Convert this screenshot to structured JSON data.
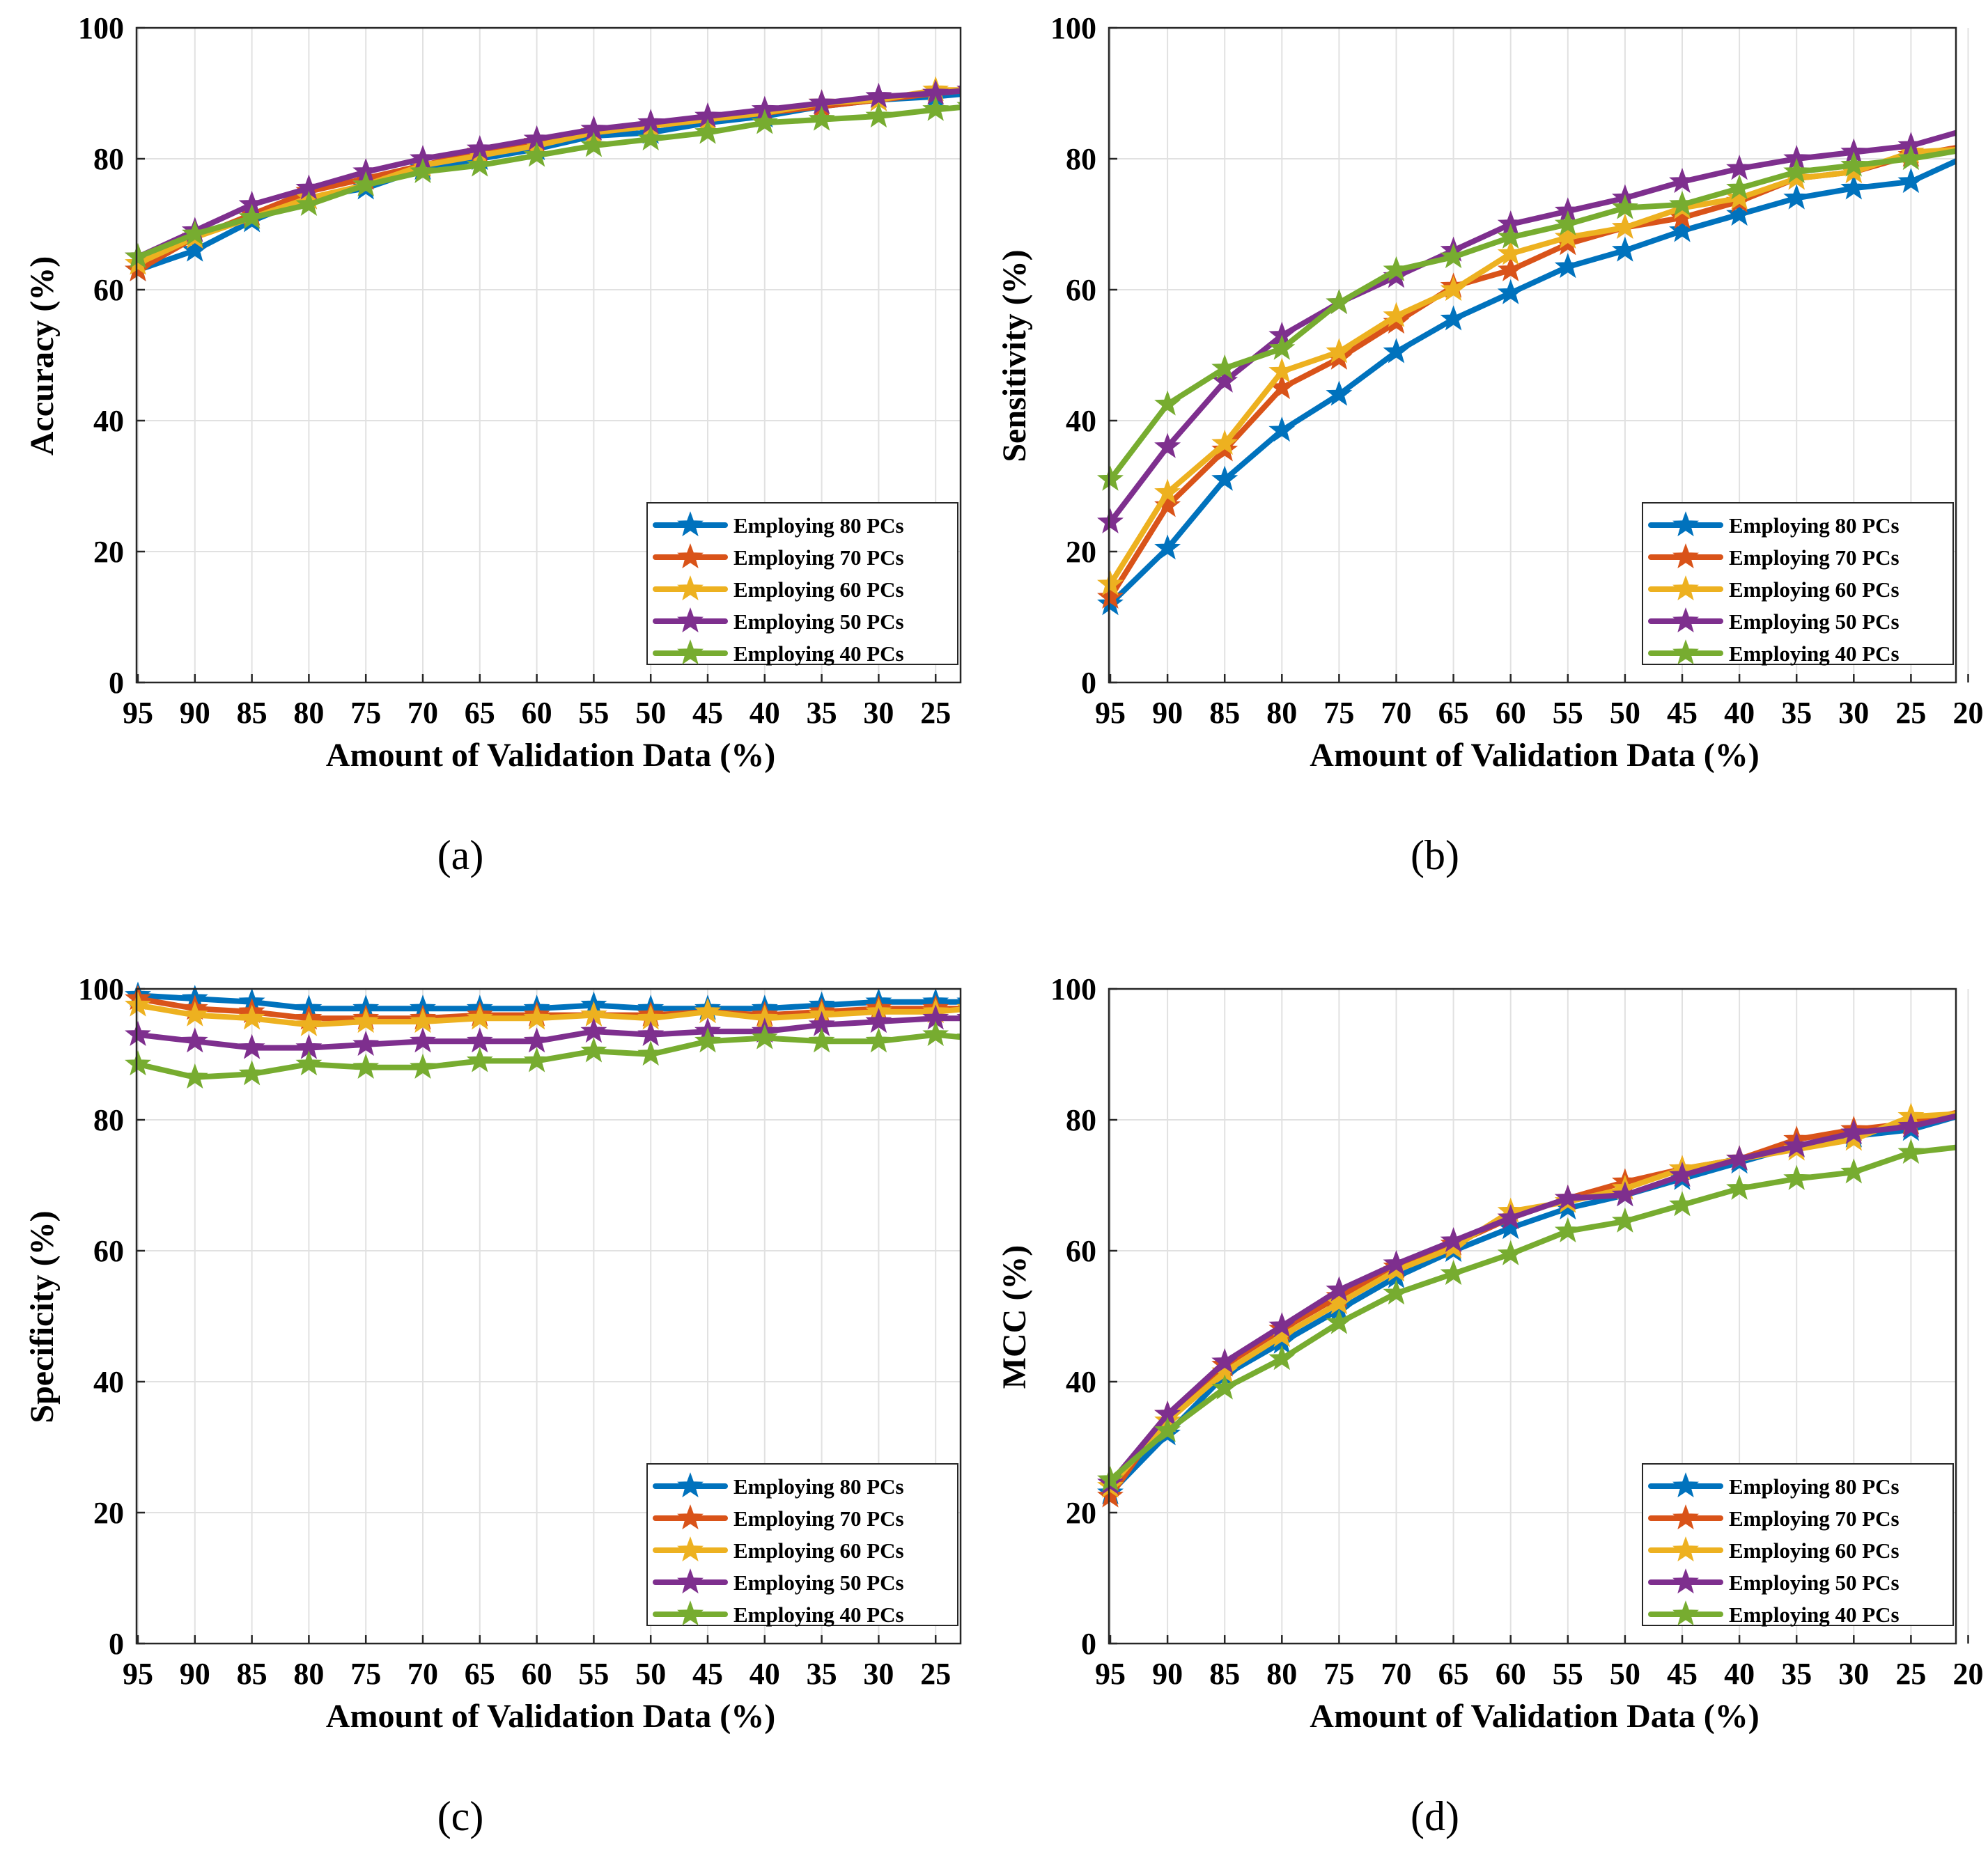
{
  "colors": {
    "Employing 80 PCs": "#0072BD",
    "Employing 70 PCs": "#D95319",
    "Employing 60 PCs": "#EDB120",
    "Employing 50 PCs": "#7E2F8E",
    "Employing 40 PCs": "#77AC30"
  },
  "chart_data": [
    {
      "type": "line",
      "caption": "(a)",
      "ylabel": "Accuracy (%)",
      "xlabel": "Amount of Validation Data (%)",
      "x_ticks": [
        "95",
        "90",
        "85",
        "80",
        "75",
        "70",
        "65",
        "60",
        "55",
        "50",
        "45",
        "40",
        "35",
        "30",
        "25"
      ],
      "y_ticks": [
        "0",
        "20",
        "40",
        "60",
        "80",
        "100"
      ],
      "xlim": [
        95,
        22
      ],
      "ylim": [
        0,
        100
      ],
      "grid": true,
      "legend_position": "bottom-right",
      "x": [
        95,
        90,
        85,
        80,
        75,
        70,
        65,
        60,
        55,
        50,
        45,
        40,
        35,
        30,
        25,
        22
      ],
      "series": [
        {
          "name": "Employing 80 PCs",
          "values": [
            63,
            66,
            70.5,
            74,
            75.5,
            78.5,
            80,
            81.5,
            83.5,
            84,
            85.5,
            86.5,
            88,
            89,
            89.5,
            90
          ]
        },
        {
          "name": "Employing 70 PCs",
          "values": [
            63,
            68,
            71.5,
            75,
            77,
            79,
            81,
            82.5,
            84,
            85,
            86,
            87,
            88,
            89,
            90,
            90.5
          ]
        },
        {
          "name": "Employing 60 PCs",
          "values": [
            64,
            68,
            71,
            74,
            76,
            79,
            80.5,
            82,
            84,
            85,
            86,
            87,
            88.5,
            89,
            90.5,
            90.5
          ]
        },
        {
          "name": "Employing 50 PCs",
          "values": [
            65,
            69,
            73,
            75.5,
            78,
            80,
            81.5,
            83,
            84.5,
            85.5,
            86.5,
            87.5,
            88.5,
            89.5,
            90,
            90.5
          ]
        },
        {
          "name": "Employing 40 PCs",
          "values": [
            65,
            68.5,
            71,
            73,
            76,
            78,
            79,
            80.5,
            82,
            83,
            84,
            85.5,
            86,
            86.5,
            87.5,
            88
          ]
        }
      ]
    },
    {
      "type": "line",
      "caption": "(b)",
      "ylabel": "Sensitivity (%)",
      "xlabel": "Amount of Validation Data (%)",
      "x_ticks": [
        "95",
        "90",
        "85",
        "80",
        "75",
        "70",
        "65",
        "60",
        "55",
        "50",
        "45",
        "40",
        "35",
        "30",
        "25",
        "20"
      ],
      "y_ticks": [
        "0",
        "20",
        "40",
        "60",
        "80",
        "100"
      ],
      "xlim": [
        95,
        20
      ],
      "ylim": [
        0,
        100
      ],
      "grid": true,
      "legend_position": "bottom-right",
      "x": [
        95,
        90,
        85,
        80,
        75,
        70,
        65,
        60,
        55,
        50,
        45,
        40,
        35,
        30,
        25,
        20
      ],
      "series": [
        {
          "name": "Employing 80 PCs",
          "values": [
            12,
            20.5,
            31,
            38.5,
            44,
            50.5,
            55.5,
            59.5,
            63.5,
            66,
            69,
            71.5,
            74,
            75.5,
            76.5,
            80.5
          ]
        },
        {
          "name": "Employing 70 PCs",
          "values": [
            13,
            27,
            35.5,
            45,
            49.5,
            55,
            60.5,
            63,
            67,
            69.5,
            71,
            73.5,
            77,
            78,
            80.5,
            82
          ]
        },
        {
          "name": "Employing 60 PCs",
          "values": [
            15,
            29,
            36.5,
            47.5,
            50.5,
            56,
            60,
            65.5,
            68,
            69.5,
            72.5,
            74,
            77,
            78,
            81,
            81.5
          ]
        },
        {
          "name": "Employing 50 PCs",
          "values": [
            24.5,
            36,
            46,
            53,
            58,
            62,
            66,
            70,
            72,
            74,
            76.5,
            78.5,
            80,
            81,
            82,
            84.5
          ]
        },
        {
          "name": "Employing 40 PCs",
          "values": [
            31,
            42.5,
            48,
            51,
            58,
            63,
            65,
            68,
            70,
            72.5,
            73,
            75.5,
            78,
            79,
            80,
            81.5
          ]
        }
      ]
    },
    {
      "type": "line",
      "caption": "(c)",
      "ylabel": "Specificity (%)",
      "xlabel": "Amount of Validation Data (%)",
      "x_ticks": [
        "95",
        "90",
        "85",
        "80",
        "75",
        "70",
        "65",
        "60",
        "55",
        "50",
        "45",
        "40",
        "35",
        "30",
        "25"
      ],
      "y_ticks": [
        "0",
        "20",
        "40",
        "60",
        "80",
        "100"
      ],
      "xlim": [
        95,
        22
      ],
      "ylim": [
        0,
        100
      ],
      "grid": true,
      "legend_position": "bottom-right",
      "x": [
        95,
        90,
        85,
        80,
        75,
        70,
        65,
        60,
        55,
        50,
        45,
        40,
        35,
        30,
        25,
        22
      ],
      "series": [
        {
          "name": "Employing 80 PCs",
          "values": [
            99,
            98.5,
            98,
            97,
            97,
            97,
            97,
            97,
            97.5,
            97,
            97,
            97,
            97.5,
            98,
            98,
            98
          ]
        },
        {
          "name": "Employing 70 PCs",
          "values": [
            98.5,
            97,
            96.5,
            95.5,
            95.5,
            95.5,
            96,
            96,
            96,
            96,
            96.5,
            96,
            96.5,
            97,
            97,
            97
          ]
        },
        {
          "name": "Employing 60 PCs",
          "values": [
            97.5,
            96,
            95.5,
            94.5,
            95,
            95,
            95.5,
            95.5,
            96,
            95.5,
            96.5,
            95.5,
            96,
            96.5,
            96.5,
            97
          ]
        },
        {
          "name": "Employing 50 PCs",
          "values": [
            93,
            92,
            91,
            91,
            91.5,
            92,
            92,
            92,
            93.5,
            93,
            93.5,
            93.5,
            94.5,
            95,
            95.5,
            95.5
          ]
        },
        {
          "name": "Employing 40 PCs",
          "values": [
            88.5,
            86.5,
            87,
            88.5,
            88,
            88,
            89,
            89,
            90.5,
            90,
            92,
            92.5,
            92,
            92,
            93,
            92.5
          ]
        }
      ]
    },
    {
      "type": "line",
      "caption": "(d)",
      "ylabel": "MCC (%)",
      "xlabel": "Amount of Validation Data (%)",
      "x_ticks": [
        "95",
        "90",
        "85",
        "80",
        "75",
        "70",
        "65",
        "60",
        "55",
        "50",
        "45",
        "40",
        "35",
        "30",
        "25",
        "20"
      ],
      "y_ticks": [
        "0",
        "20",
        "40",
        "60",
        "80",
        "100"
      ],
      "xlim": [
        95,
        20
      ],
      "ylim": [
        0,
        100
      ],
      "grid": true,
      "legend_position": "bottom-right",
      "x": [
        95,
        90,
        85,
        80,
        75,
        70,
        65,
        60,
        55,
        50,
        45,
        40,
        35,
        30,
        25,
        20
      ],
      "series": [
        {
          "name": "Employing 80 PCs",
          "values": [
            23,
            32,
            41,
            46,
            51,
            56,
            60,
            63.5,
            66.5,
            68.5,
            71,
            73.5,
            76,
            77.5,
            78.5,
            81
          ]
        },
        {
          "name": "Employing 70 PCs",
          "values": [
            22.5,
            35,
            42.5,
            48,
            53,
            57.5,
            61,
            65,
            68,
            70.5,
            72.5,
            74,
            77,
            78.5,
            79.5,
            81.5
          ]
        },
        {
          "name": "Employing 60 PCs",
          "values": [
            24,
            34,
            41.5,
            47,
            52,
            57,
            60.5,
            66,
            67.5,
            69.5,
            72.5,
            74,
            75.5,
            77,
            80.5,
            81
          ]
        },
        {
          "name": "Employing 50 PCs",
          "values": [
            24.5,
            35,
            43,
            48.5,
            54,
            58,
            61.5,
            65,
            68,
            68.5,
            71.5,
            74,
            76,
            78,
            79,
            81
          ]
        },
        {
          "name": "Employing 40 PCs",
          "values": [
            25,
            32.5,
            39,
            43.5,
            49,
            53.5,
            56.5,
            59.5,
            63,
            64.5,
            67,
            69.5,
            71,
            72,
            75,
            76
          ]
        }
      ]
    }
  ]
}
